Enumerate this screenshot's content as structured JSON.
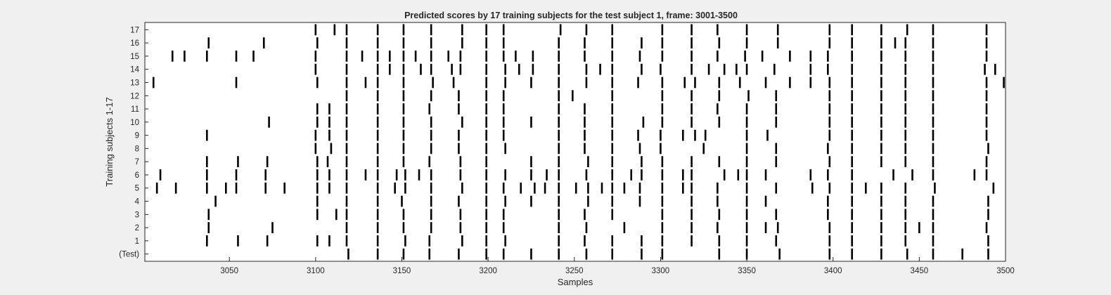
{
  "chart_data": {
    "type": "raster",
    "title": "Predicted scores by 17 training subjects for the test subject 1, frame: 3001-3500",
    "xlabel": "Samples",
    "ylabel": "Training subjects 1-17",
    "xlim": [
      3001,
      3500
    ],
    "xticks": [
      3050,
      3100,
      3150,
      3200,
      3250,
      3300,
      3350,
      3400,
      3450,
      3500
    ],
    "grid": false,
    "colors": {
      "background": "#f0f0f0",
      "axes": "#ffffff",
      "event": "#000000",
      "frame": "#262626"
    },
    "rows": [
      {
        "label": "(Test)",
        "events": [
          3119,
          3136,
          3151,
          3166,
          3183,
          3199,
          3209,
          3225,
          3241,
          3257,
          3272,
          3289,
          3301,
          3334,
          3350,
          3369,
          3398,
          3411,
          3428,
          3443,
          3458,
          3475,
          3490
        ]
      },
      {
        "label": "1",
        "events": [
          3037,
          3055,
          3072,
          3101,
          3108,
          3118,
          3136,
          3152,
          3166,
          3185,
          3199,
          3210,
          3241,
          3256,
          3272,
          3289,
          3301,
          3318,
          3334,
          3350,
          3367,
          3398,
          3411,
          3428,
          3442,
          3458,
          3490
        ]
      },
      {
        "label": "2",
        "events": [
          3038,
          3075,
          3118,
          3136,
          3151,
          3167,
          3184,
          3199,
          3209,
          3241,
          3257,
          3279,
          3301,
          3318,
          3333,
          3350,
          3361,
          3368,
          3398,
          3411,
          3428,
          3442,
          3450,
          3458,
          3489
        ]
      },
      {
        "label": "3",
        "events": [
          3038,
          3101,
          3112,
          3118,
          3136,
          3151,
          3167,
          3184,
          3199,
          3209,
          3241,
          3256,
          3272,
          3301,
          3318,
          3334,
          3350,
          3367,
          3397,
          3411,
          3428,
          3442,
          3458,
          3490
        ]
      },
      {
        "label": "4",
        "events": [
          3042,
          3101,
          3118,
          3136,
          3150,
          3167,
          3183,
          3199,
          3210,
          3225,
          3241,
          3258,
          3272,
          3288,
          3301,
          3318,
          3333,
          3350,
          3361,
          3397,
          3411,
          3428,
          3442,
          3458,
          3490
        ]
      },
      {
        "label": "5",
        "events": [
          3008,
          3019,
          3037,
          3048,
          3054,
          3071,
          3082,
          3101,
          3108,
          3118,
          3136,
          3146,
          3152,
          3167,
          3185,
          3199,
          3209,
          3219,
          3227,
          3233,
          3241,
          3251,
          3258,
          3266,
          3272,
          3279,
          3288,
          3301,
          3313,
          3318,
          3333,
          3350,
          3367,
          3388,
          3398,
          3411,
          3419,
          3428,
          3442,
          3459,
          3493
        ]
      },
      {
        "label": "6",
        "events": [
          3010,
          3037,
          3054,
          3071,
          3101,
          3108,
          3118,
          3129,
          3136,
          3147,
          3152,
          3160,
          3167,
          3184,
          3199,
          3210,
          3225,
          3234,
          3241,
          3257,
          3272,
          3283,
          3289,
          3301,
          3313,
          3318,
          3337,
          3345,
          3350,
          3361,
          3387,
          3397,
          3411,
          3435,
          3446,
          3458,
          3482,
          3489
        ]
      },
      {
        "label": "7",
        "events": [
          3037,
          3055,
          3072,
          3101,
          3107,
          3118,
          3136,
          3151,
          3166,
          3184,
          3199,
          3225,
          3241,
          3258,
          3272,
          3289,
          3301,
          3318,
          3334,
          3350,
          3367,
          3398,
          3411,
          3428,
          3442,
          3458,
          3489
        ]
      },
      {
        "label": "8",
        "events": [
          3100,
          3109,
          3118,
          3136,
          3151,
          3167,
          3183,
          3199,
          3210,
          3241,
          3256,
          3272,
          3288,
          3300,
          3325,
          3350,
          3367,
          3397,
          3411,
          3428,
          3442,
          3458,
          3490
        ]
      },
      {
        "label": "9",
        "events": [
          3037,
          3100,
          3108,
          3118,
          3136,
          3151,
          3167,
          3183,
          3199,
          3209,
          3241,
          3256,
          3272,
          3287,
          3300,
          3313,
          3320,
          3326,
          3350,
          3362,
          3398,
          3411,
          3428,
          3442,
          3458,
          3489
        ]
      },
      {
        "label": "10",
        "events": [
          3073,
          3101,
          3108,
          3118,
          3136,
          3151,
          3167,
          3185,
          3199,
          3209,
          3225,
          3241,
          3256,
          3272,
          3290,
          3301,
          3318,
          3334,
          3350,
          3367,
          3398,
          3411,
          3428,
          3442,
          3458,
          3489
        ]
      },
      {
        "label": "11",
        "events": [
          3101,
          3108,
          3118,
          3136,
          3151,
          3166,
          3183,
          3199,
          3209,
          3241,
          3256,
          3272,
          3301,
          3318,
          3333,
          3350,
          3367,
          3398,
          3411,
          3428,
          3442,
          3458,
          3489
        ]
      },
      {
        "label": "12",
        "events": [
          3118,
          3136,
          3151,
          3167,
          3183,
          3199,
          3209,
          3241,
          3249,
          3272,
          3301,
          3318,
          3334,
          3351,
          3367,
          3398,
          3411,
          3428,
          3442,
          3458,
          3489
        ]
      },
      {
        "label": "13",
        "events": [
          3006,
          3054,
          3101,
          3118,
          3129,
          3136,
          3151,
          3168,
          3180,
          3199,
          3210,
          3225,
          3241,
          3257,
          3272,
          3287,
          3301,
          3314,
          3320,
          3334,
          3346,
          3361,
          3375,
          3387,
          3398,
          3411,
          3428,
          3442,
          3458,
          3489,
          3499
        ]
      },
      {
        "label": "14",
        "events": [
          3100,
          3118,
          3136,
          3143,
          3151,
          3161,
          3167,
          3179,
          3184,
          3199,
          3210,
          3218,
          3226,
          3241,
          3257,
          3265,
          3272,
          3289,
          3300,
          3318,
          3328,
          3337,
          3344,
          3350,
          3366,
          3387,
          3397,
          3411,
          3428,
          3442,
          3458,
          3488,
          3494
        ]
      },
      {
        "label": "15",
        "events": [
          3017,
          3024,
          3037,
          3054,
          3064,
          3100,
          3118,
          3127,
          3136,
          3143,
          3151,
          3158,
          3167,
          3177,
          3184,
          3199,
          3209,
          3216,
          3226,
          3241,
          3256,
          3272,
          3288,
          3301,
          3318,
          3333,
          3349,
          3359,
          3375,
          3387,
          3397,
          3411,
          3428,
          3442,
          3458,
          3489
        ]
      },
      {
        "label": "16",
        "events": [
          3038,
          3070,
          3101,
          3118,
          3136,
          3151,
          3167,
          3185,
          3199,
          3209,
          3241,
          3256,
          3272,
          3289,
          3301,
          3318,
          3334,
          3350,
          3368,
          3398,
          3411,
          3428,
          3436,
          3442,
          3458,
          3489
        ]
      },
      {
        "label": "17",
        "events": [
          3100,
          3111,
          3118,
          3136,
          3151,
          3167,
          3185,
          3199,
          3209,
          3242,
          3257,
          3272,
          3301,
          3318,
          3333,
          3350,
          3368,
          3398,
          3411,
          3428,
          3443,
          3458,
          3489
        ]
      }
    ]
  }
}
